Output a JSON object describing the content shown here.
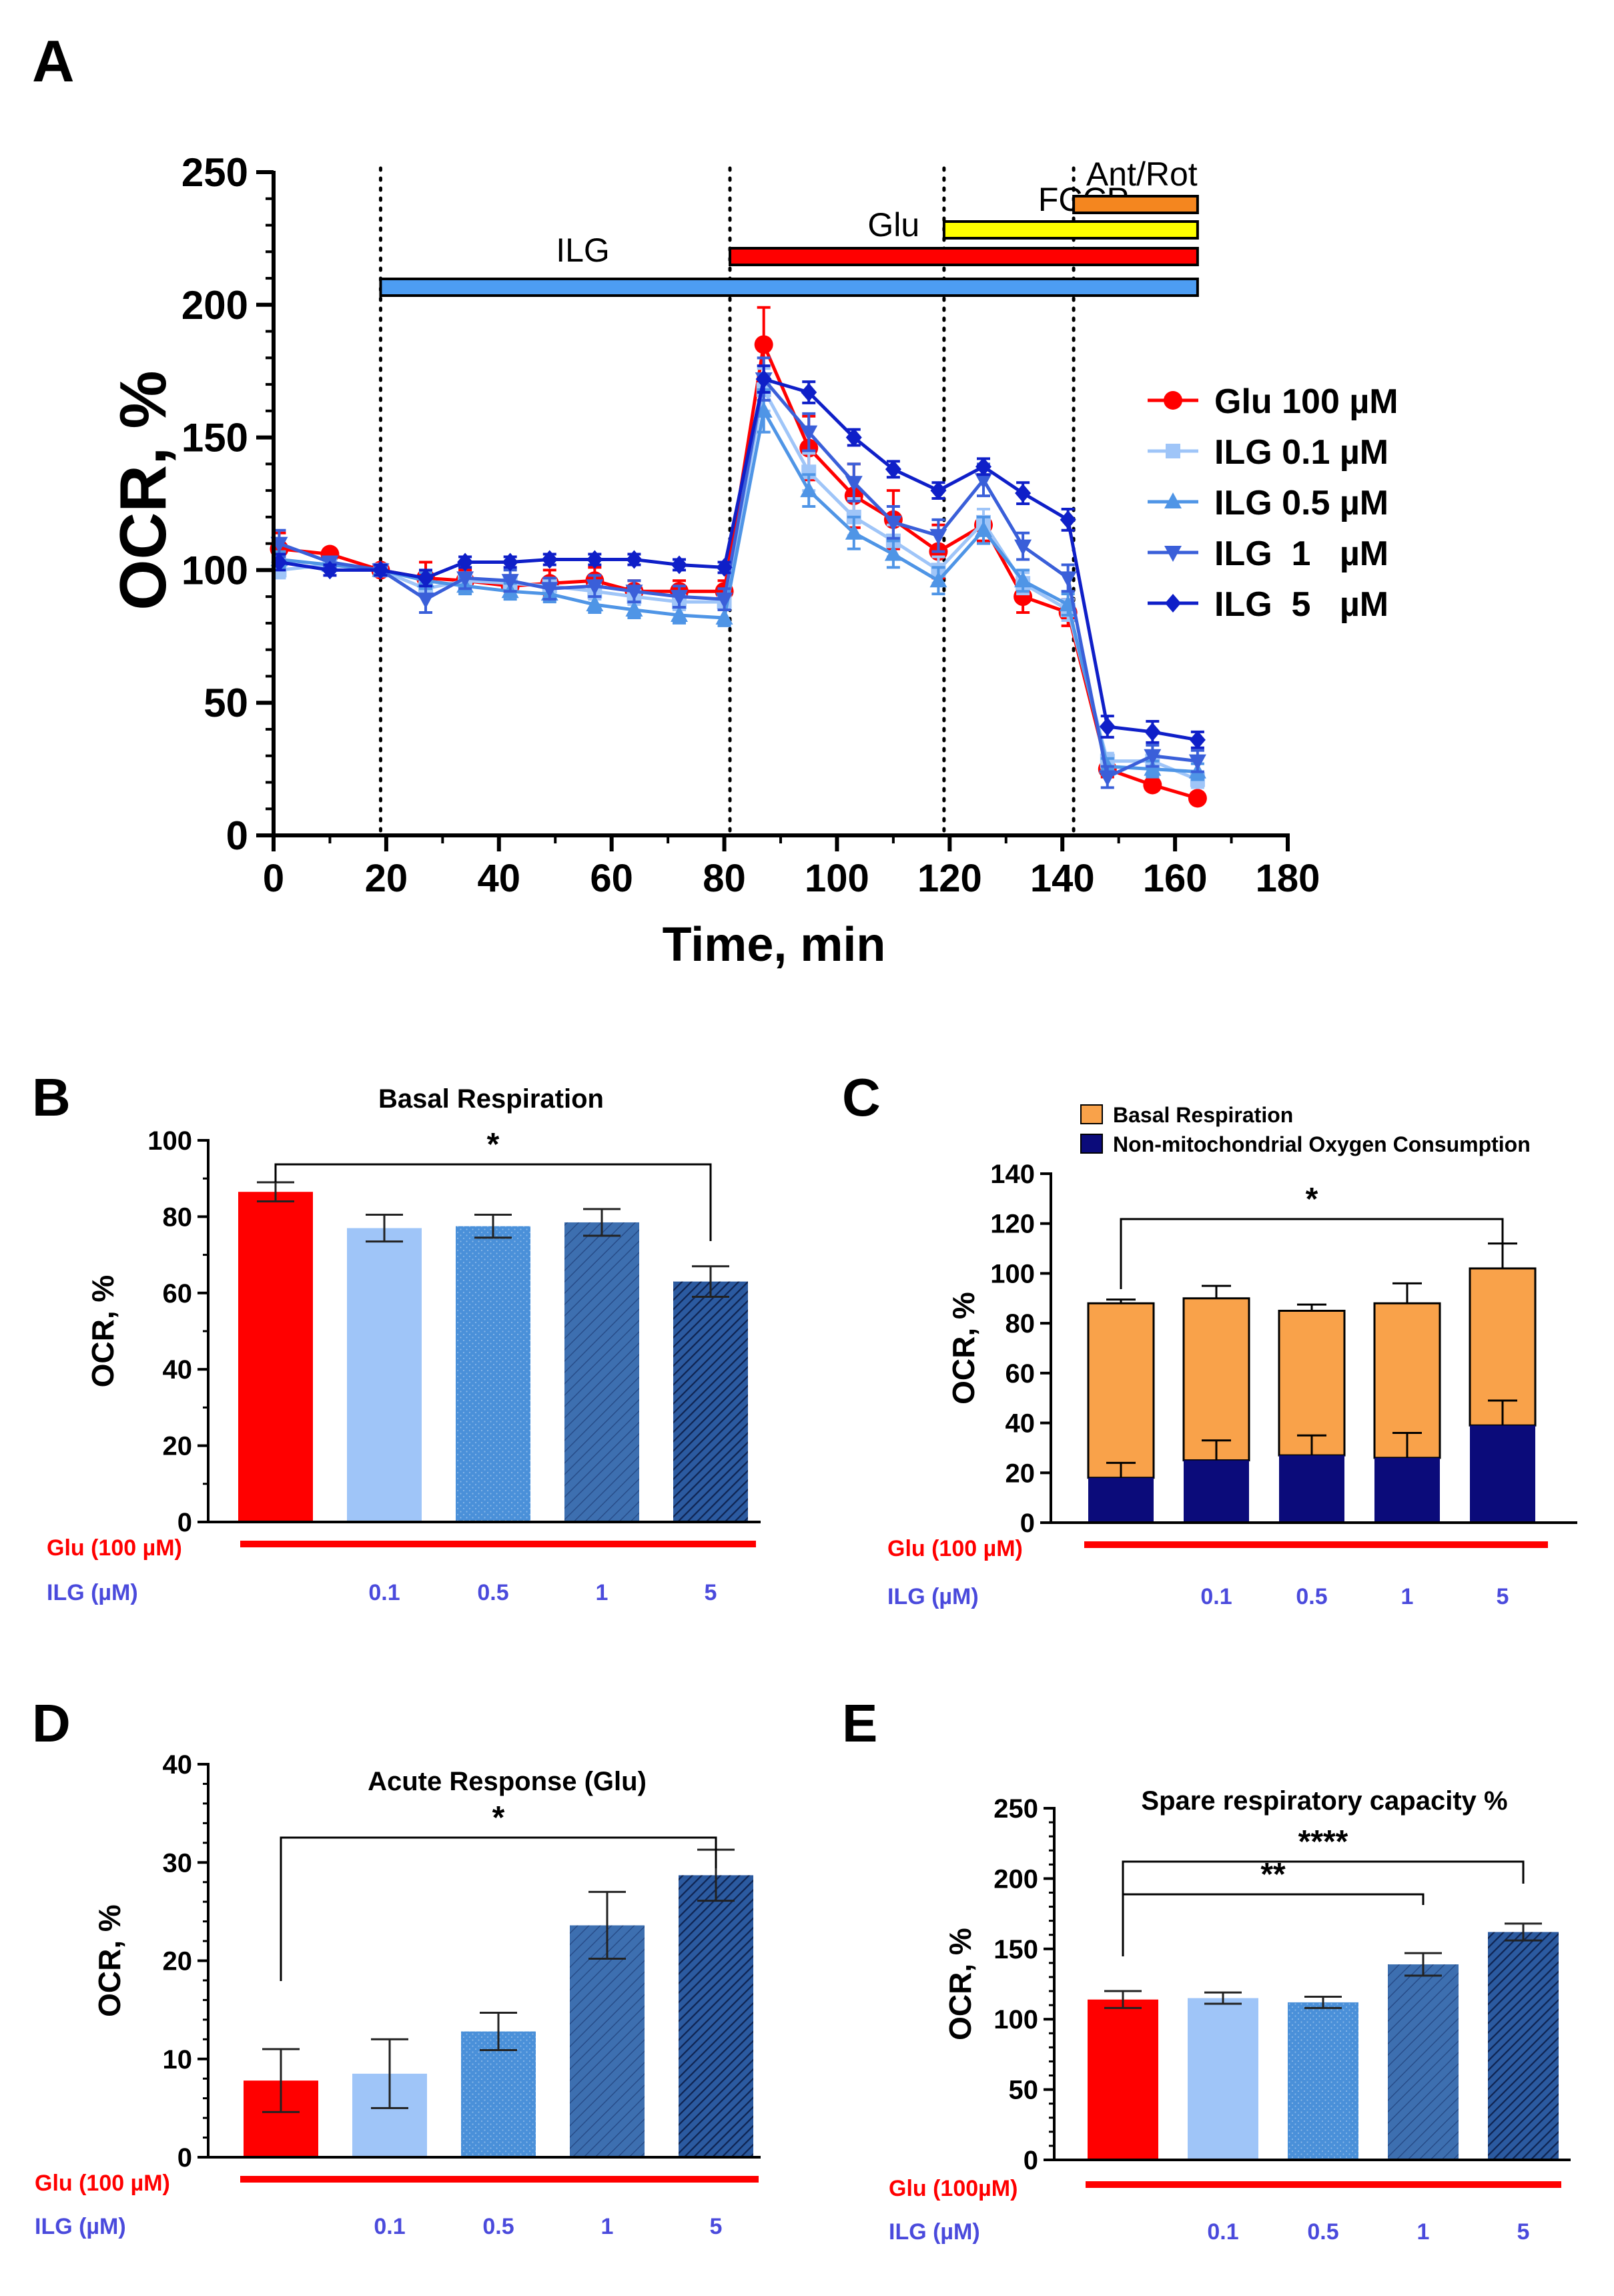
{
  "colors": {
    "glu": "#ff0000",
    "ilg01": "#9fc5f8",
    "ilg05": "#4f95e6",
    "ilg1": "#3a5fd9",
    "ilg5": "#0f1fc8",
    "panel_b_05": "#4a90d9",
    "panel_b_1": "#3d6fb0",
    "panel_b_5": "#2b5aa0",
    "basal_orange": "#f9a24a",
    "nonmito_navy": "#0b0b7a",
    "treatment_label": "#4a4adc",
    "bar_ilg_glu": "#4d9df3",
    "bar_glu_bar": "#ff0000",
    "bar_fccp": "#ffff00",
    "bar_antrot": "#f4861f",
    "axis": "#000000"
  },
  "chart_data": [
    {
      "panel": "A",
      "type": "line",
      "xlabel": "Time, min",
      "ylabel": "OCR, %",
      "xlim": [
        0,
        180
      ],
      "ylim": [
        0,
        250
      ],
      "xticks": [
        0,
        20,
        40,
        60,
        80,
        100,
        120,
        140,
        160,
        180
      ],
      "yticks": [
        0,
        50,
        100,
        150,
        200,
        250
      ],
      "xtick_labels": [
        "0",
        "20",
        "40",
        "60",
        "80",
        "100",
        "120",
        "140",
        "160",
        "180"
      ],
      "ytick_labels": [
        "0",
        "50",
        "100",
        "150",
        "200",
        "250"
      ],
      "injections": [
        19,
        81,
        119,
        142
      ],
      "treatment_bars": [
        {
          "label": "ILG",
          "start": 19,
          "end": 164
        },
        {
          "label": "Glu",
          "start": 81,
          "end": 164
        },
        {
          "label": "FCCP",
          "start": 119,
          "end": 164
        },
        {
          "label": "Ant/Rot",
          "start": 142,
          "end": 164
        }
      ],
      "x": [
        1,
        10,
        19,
        27,
        34,
        42,
        49,
        57,
        64,
        72,
        80,
        87,
        95,
        103,
        110,
        118,
        126,
        133,
        141,
        148,
        156,
        164
      ],
      "series": [
        {
          "name": "Glu 100 µM",
          "marker": "circle",
          "values": [
            108,
            106,
            100,
            97,
            96,
            94,
            95,
            96,
            92,
            92,
            92,
            185,
            146,
            128,
            119,
            107,
            117,
            90,
            84,
            25,
            19,
            14
          ],
          "errors": [
            6,
            2,
            2,
            6,
            4,
            4,
            5,
            5,
            4,
            4,
            4,
            14,
            12,
            12,
            11,
            10,
            6,
            6,
            5,
            3,
            2,
            2
          ]
        },
        {
          "name": "ILG 0.1 µM",
          "marker": "square",
          "values": [
            100,
            102,
            100,
            93,
            96,
            95,
            94,
            92,
            90,
            88,
            88,
            168,
            137,
            120,
            111,
            100,
            118,
            95,
            85,
            28,
            28,
            21
          ],
          "errors": [
            3,
            2,
            2,
            3,
            3,
            3,
            3,
            3,
            3,
            3,
            3,
            8,
            7,
            7,
            6,
            5,
            5,
            4,
            4,
            3,
            3,
            3
          ]
        },
        {
          "name": "ILG 0.5 µM",
          "marker": "triangle",
          "values": [
            104,
            102,
            100,
            96,
            94,
            92,
            91,
            87,
            85,
            83,
            82,
            160,
            130,
            114,
            106,
            96,
            115,
            96,
            87,
            26,
            25,
            24
          ],
          "errors": [
            3,
            2,
            2,
            3,
            3,
            3,
            3,
            3,
            3,
            3,
            3,
            8,
            6,
            6,
            5,
            5,
            5,
            4,
            4,
            3,
            3,
            3
          ]
        },
        {
          "name": "ILG  1   µM",
          "marker": "triangle-down",
          "values": [
            110,
            103,
            100,
            89,
            97,
            96,
            93,
            94,
            92,
            90,
            89,
            172,
            152,
            133,
            118,
            113,
            134,
            109,
            97,
            22,
            30,
            28
          ],
          "errors": [
            5,
            2,
            2,
            5,
            4,
            4,
            4,
            4,
            4,
            4,
            4,
            8,
            7,
            7,
            6,
            6,
            6,
            5,
            5,
            4,
            4,
            4
          ]
        },
        {
          "name": "ILG  5   µM",
          "marker": "diamond",
          "values": [
            103,
            100,
            100,
            97,
            103,
            103,
            104,
            104,
            104,
            102,
            101,
            172,
            167,
            150,
            138,
            130,
            139,
            129,
            119,
            41,
            39,
            36
          ],
          "errors": [
            3,
            2,
            2,
            3,
            2,
            2,
            2,
            2,
            2,
            2,
            2,
            5,
            4,
            3,
            3,
            3,
            3,
            4,
            4,
            4,
            4,
            3
          ]
        }
      ]
    },
    {
      "panel": "B",
      "type": "bar",
      "title": "Basal Respiration",
      "ylabel": "OCR, %",
      "ylim": [
        0,
        100
      ],
      "yticks": [
        0,
        20,
        40,
        60,
        80,
        100
      ],
      "ytick_labels": [
        "0",
        "20",
        "40",
        "60",
        "80",
        "100"
      ],
      "categories": [
        "",
        "0.1",
        "0.5",
        "1",
        "5"
      ],
      "values": [
        86.5,
        77,
        77.5,
        78.5,
        63
      ],
      "errors": [
        2.5,
        3.5,
        3,
        3.5,
        4
      ],
      "significance": [
        {
          "from": 0,
          "to": 4,
          "label": "*"
        }
      ],
      "glu_label": "Glu (100 µM)",
      "ilg_label": "ILG (µM)"
    },
    {
      "panel": "C",
      "type": "bar",
      "stacked": true,
      "ylabel": "OCR, %",
      "ylim": [
        0,
        140
      ],
      "yticks": [
        0,
        20,
        40,
        60,
        80,
        100,
        120,
        140
      ],
      "ytick_labels": [
        "0",
        "20",
        "40",
        "60",
        "80",
        "100",
        "120",
        "140"
      ],
      "categories": [
        "",
        "0.1",
        "0.5",
        "1",
        "5"
      ],
      "series": [
        {
          "name": "Non-mitochondrial Oxygen Consumption",
          "values": [
            18,
            25,
            27,
            26,
            39
          ],
          "errors": [
            6,
            8,
            8,
            10,
            10
          ]
        },
        {
          "name": "Basal Respiration",
          "values": [
            70,
            65,
            58,
            62,
            63
          ],
          "errors": [
            1.5,
            5,
            2.5,
            8,
            10
          ]
        }
      ],
      "legend": [
        "Basal Respiration",
        "Non-mitochondrial Oxygen Consumption"
      ],
      "significance": [
        {
          "from": 0,
          "to": 4,
          "label": "*"
        }
      ],
      "glu_label": "Glu (100 µM)",
      "ilg_label": "ILG (µM)"
    },
    {
      "panel": "D",
      "type": "bar",
      "title": "Acute Response (Glu)",
      "ylabel": "OCR, %",
      "ylim": [
        0,
        40
      ],
      "yticks": [
        0,
        10,
        20,
        30,
        40
      ],
      "ytick_labels": [
        "0",
        "10",
        "20",
        "30",
        "40"
      ],
      "categories": [
        "",
        "0.1",
        "0.5",
        "1",
        "5"
      ],
      "values": [
        7.8,
        8.5,
        12.8,
        23.6,
        28.7
      ],
      "errors": [
        3.2,
        3.5,
        1.9,
        3.4,
        2.6
      ],
      "significance": [
        {
          "from": 0,
          "to": 4,
          "label": "*"
        }
      ],
      "glu_label": "Glu (100 µM)",
      "ilg_label": "ILG (µM)"
    },
    {
      "panel": "E",
      "type": "bar",
      "title": "Spare respiratory capacity %",
      "ylabel": "OCR, %",
      "ylim": [
        0,
        250
      ],
      "yticks": [
        0,
        50,
        100,
        150,
        200,
        250
      ],
      "ytick_labels": [
        "0",
        "50",
        "100",
        "150",
        "200",
        "250"
      ],
      "categories": [
        "",
        "0.1",
        "0.5",
        "1",
        "5"
      ],
      "values": [
        114,
        115,
        112,
        139,
        162
      ],
      "errors": [
        6,
        4,
        4,
        8,
        6
      ],
      "significance": [
        {
          "from": 0,
          "to": 3,
          "label": "**"
        },
        {
          "from": 0,
          "to": 4,
          "label": "****"
        }
      ],
      "glu_label": "Glu (100µM)",
      "ilg_label": "ILG (µM)"
    }
  ],
  "panel_labels": {
    "a": "A",
    "b": "B",
    "c": "C",
    "d": "D",
    "e": "E"
  }
}
